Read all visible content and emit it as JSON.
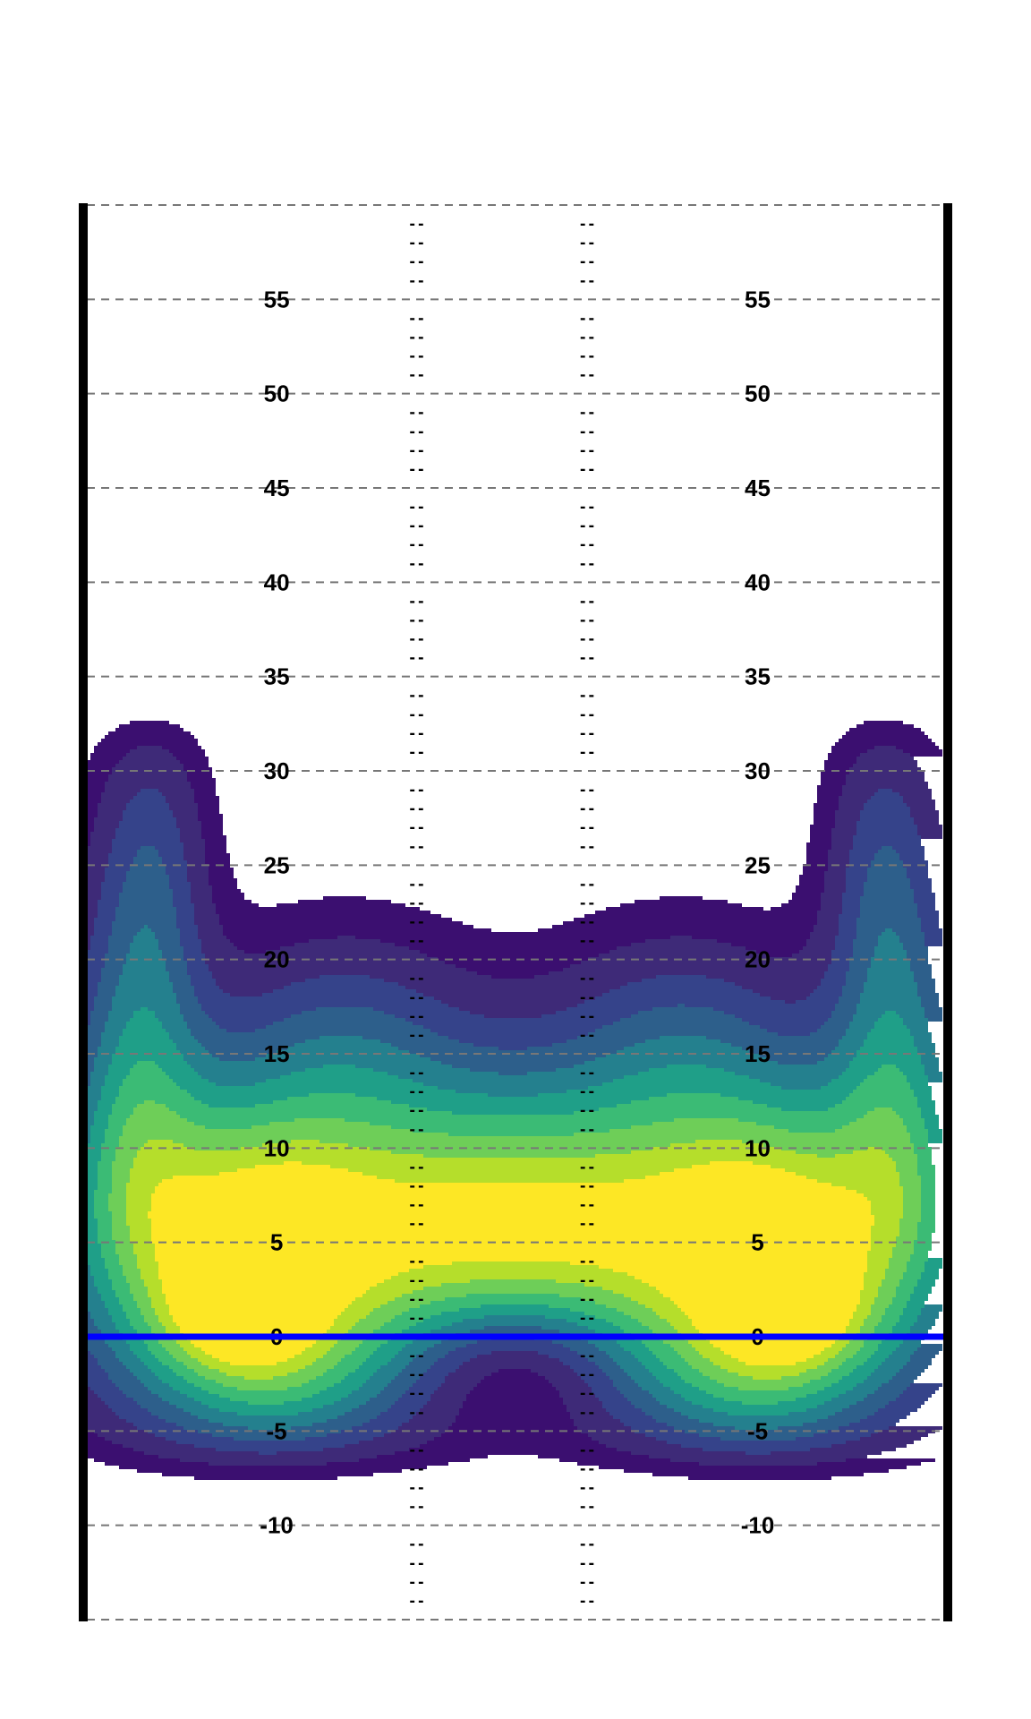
{
  "chart_data": {
    "type": "heatmap",
    "title": "",
    "xlabel": "",
    "ylabel": "",
    "xlim": [
      0,
      53.3
    ],
    "ylim": [
      -15,
      60
    ],
    "colormap": [
      "#440154",
      "#3b0f70",
      "#3e2a78",
      "#35438a",
      "#2d5f8b",
      "#24808e",
      "#1f9f88",
      "#3bbb75",
      "#6ece58",
      "#b5de2b",
      "#fde725"
    ],
    "yard_lines": [
      -15,
      -10,
      -5,
      0,
      5,
      10,
      15,
      20,
      25,
      30,
      35,
      40,
      45,
      50,
      55,
      60
    ],
    "yard_labels": [
      {
        "value": -10,
        "text": "-10"
      },
      {
        "value": -5,
        "text": "-5"
      },
      {
        "value": 0,
        "text": "0"
      },
      {
        "value": 5,
        "text": "5"
      },
      {
        "value": 10,
        "text": "10"
      },
      {
        "value": 15,
        "text": "15"
      },
      {
        "value": 20,
        "text": "20"
      },
      {
        "value": 25,
        "text": "25"
      },
      {
        "value": 30,
        "text": "30"
      },
      {
        "value": 35,
        "text": "35"
      },
      {
        "value": 40,
        "text": "40"
      },
      {
        "value": 45,
        "text": "45"
      },
      {
        "value": 50,
        "text": "50"
      },
      {
        "value": 55,
        "text": "55"
      }
    ],
    "line_of_scrimmage": 0,
    "line_of_scrimmage_color": "#0000ff",
    "hash_mark_text": "--",
    "density_peaks": [
      {
        "x": 18,
        "y": 5,
        "level": 10
      },
      {
        "x": 30,
        "y": 5,
        "level": 10
      },
      {
        "x": 7,
        "y": 5,
        "level": 8
      },
      {
        "x": 10,
        "y": 1.5,
        "level": 8
      },
      {
        "x": 43,
        "y": 1.5,
        "level": 8
      },
      {
        "x": 24,
        "y": -1.2,
        "level": 1
      }
    ]
  }
}
